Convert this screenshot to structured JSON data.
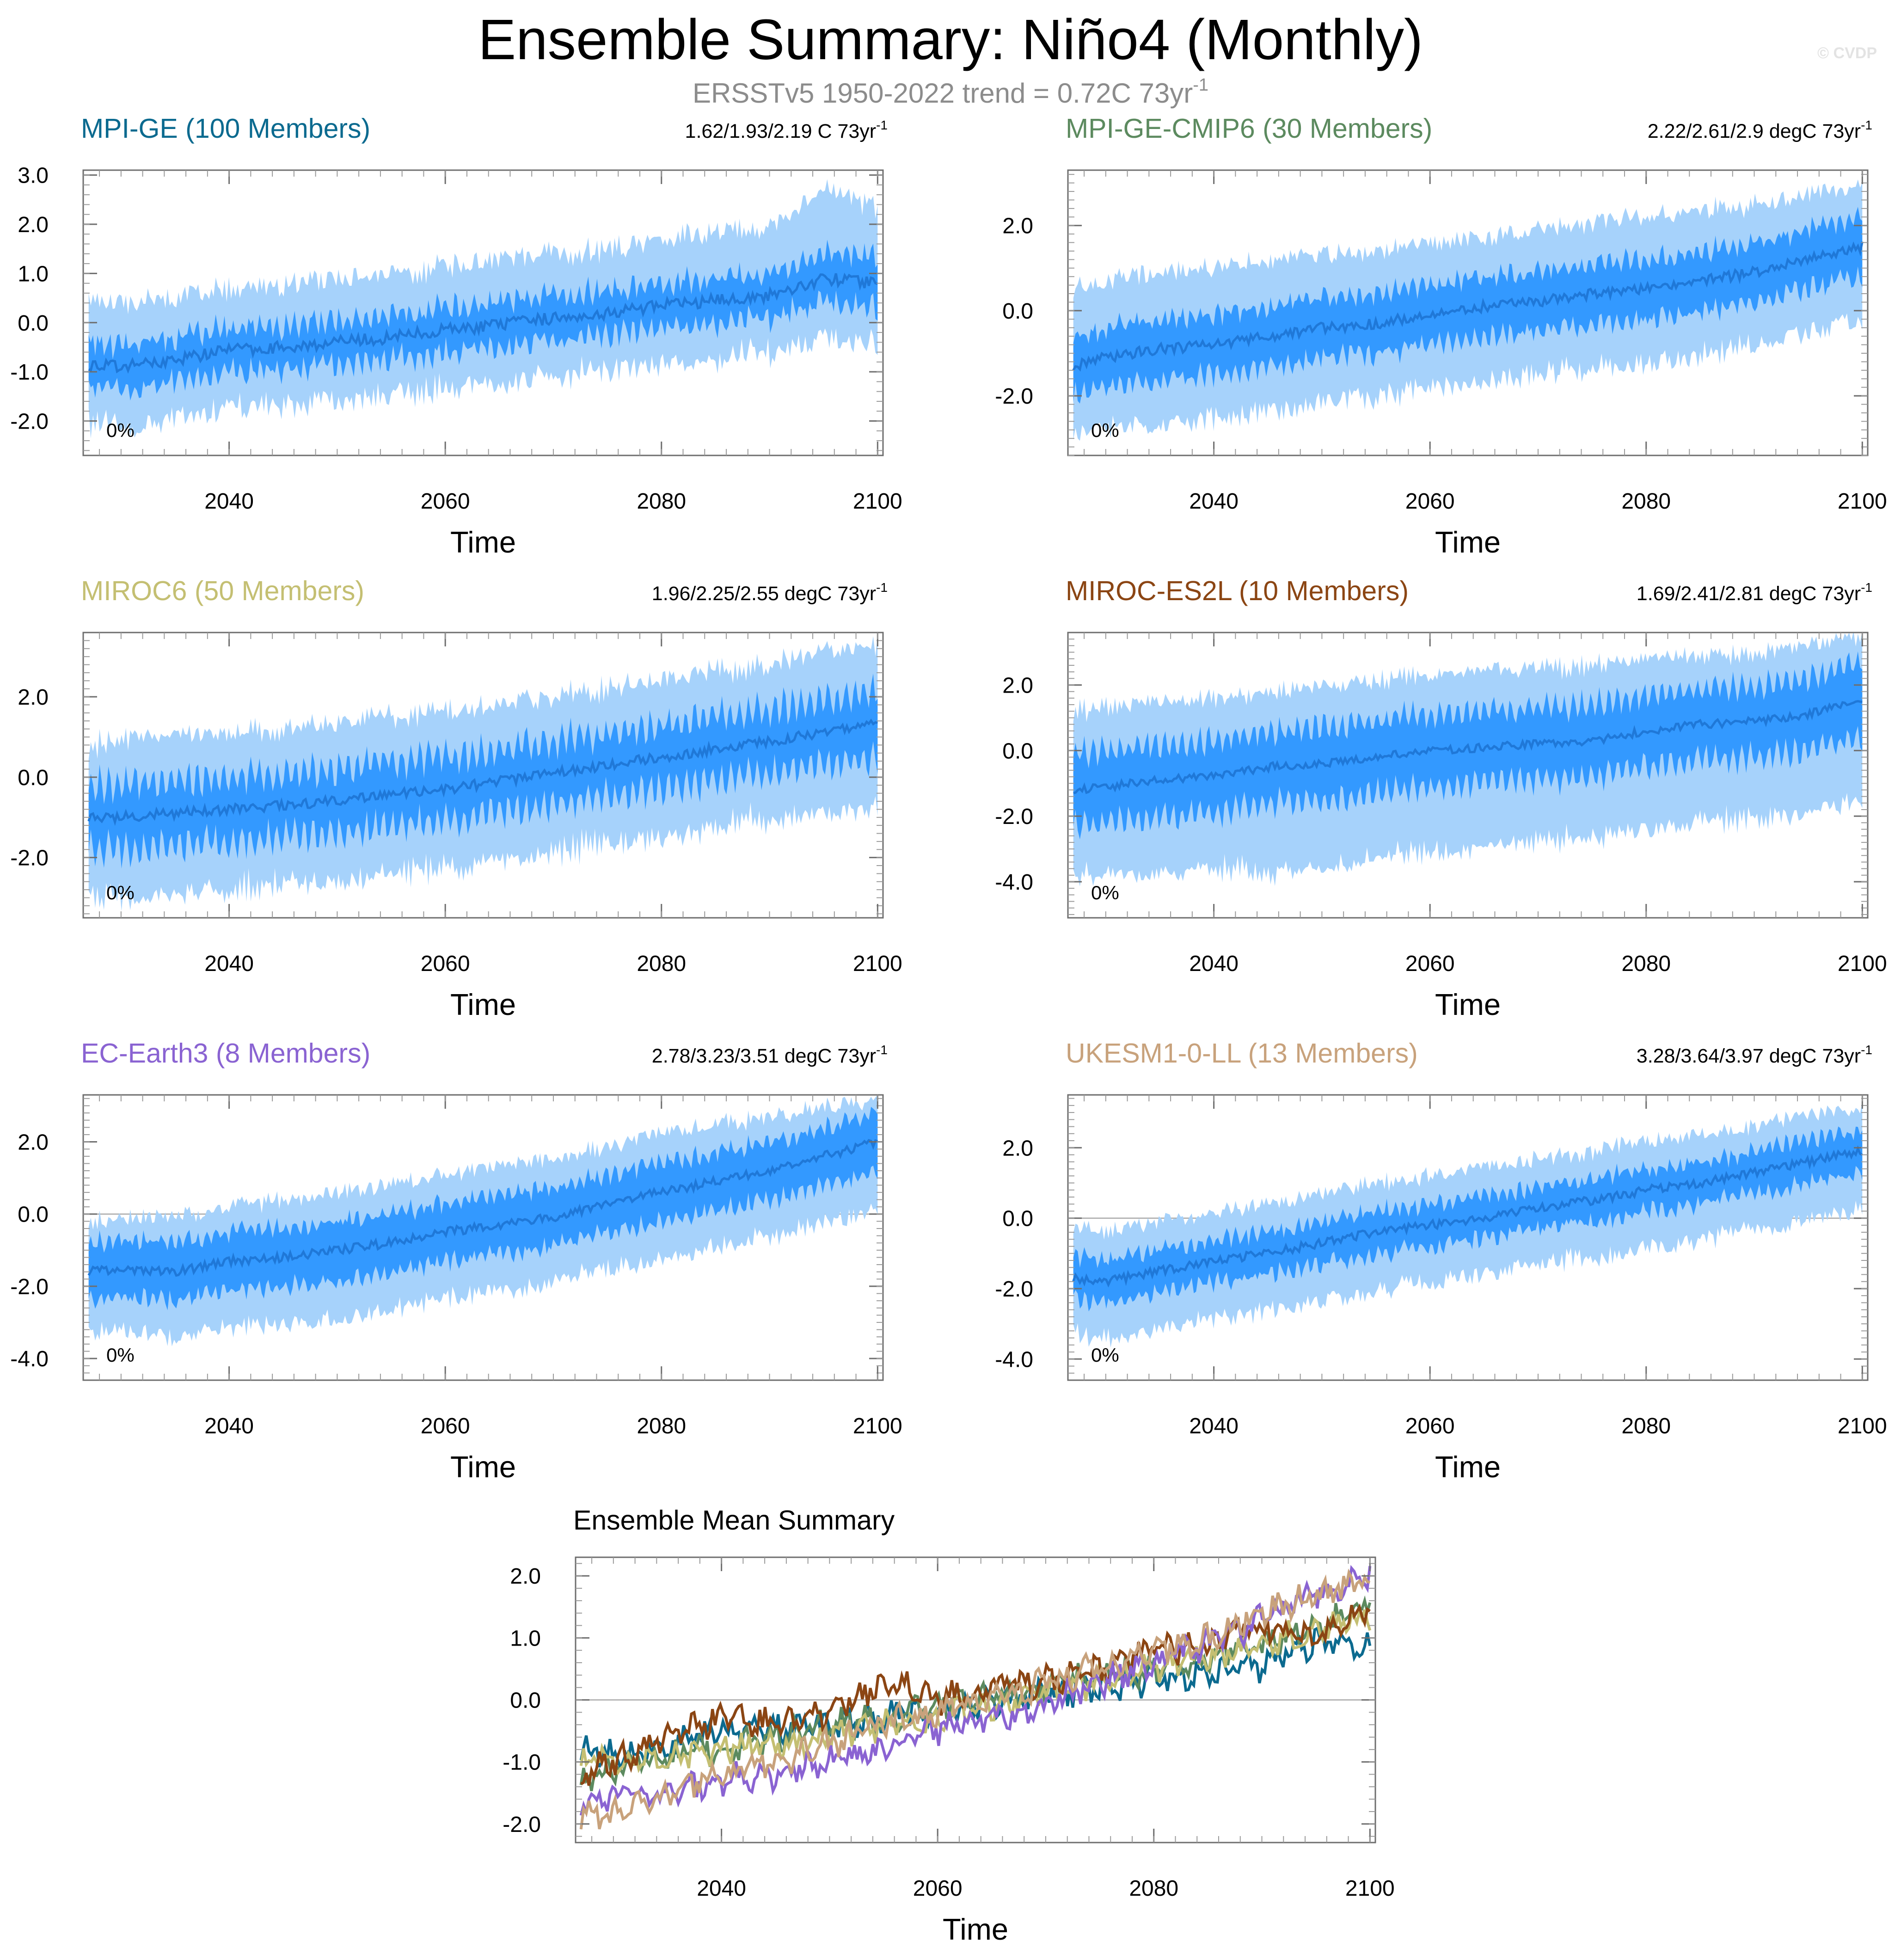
{
  "figure": {
    "title": "Ensemble Summary: Niño4 (Monthly)",
    "subtitle_text": "ERSSTv5 1950-2022 trend = 0.72C 73yr",
    "subtitle_sup": "-1",
    "watermark": "© CVDP"
  },
  "colors": {
    "band_outer": "#a6d2fb",
    "band_inner": "#3399ff",
    "mean_line": "#1f78d8",
    "zero_line": "#a9a9a9",
    "frame": "#6e6e6e"
  },
  "chart_data": [
    {
      "type": "area",
      "id": "mpi-ge",
      "title": "MPI-GE (100 Members)",
      "title_color": "#0b6a8f",
      "trend_text": "1.62/1.93/2.19 C 73yr",
      "trend_sup": "-1",
      "percent_label": "0%",
      "xlabel": "Time",
      "ylabel": "",
      "xlim": [
        2026.5,
        2100.5
      ],
      "ylim": [
        -2.7,
        3.1
      ],
      "xticks": [
        2040,
        2060,
        2080,
        2100
      ],
      "yticks": [
        3.0,
        2.0,
        1.0,
        0.0,
        -1.0,
        -2.0
      ],
      "ytick_labels": [
        "3.0",
        "2.0",
        "1.0",
        "0.0",
        "-1.0",
        "-2.0"
      ],
      "series": {
        "x": [
          2027,
          2030,
          2035,
          2040,
          2045,
          2050,
          2055,
          2060,
          2065,
          2070,
          2075,
          2080,
          2085,
          2090,
          2095,
          2100
        ],
        "mean": [
          -0.85,
          -0.9,
          -0.75,
          -0.55,
          -0.5,
          -0.4,
          -0.3,
          -0.15,
          -0.05,
          0.1,
          0.2,
          0.35,
          0.45,
          0.55,
          0.9,
          0.8
        ],
        "inner_low": [
          -1.3,
          -1.35,
          -1.2,
          -1.0,
          -0.95,
          -0.85,
          -0.75,
          -0.6,
          -0.5,
          -0.35,
          -0.25,
          -0.1,
          0.0,
          0.1,
          0.4,
          0.3
        ],
        "inner_high": [
          -0.4,
          -0.45,
          -0.3,
          -0.1,
          -0.05,
          0.05,
          0.15,
          0.3,
          0.4,
          0.55,
          0.65,
          0.8,
          0.9,
          1.0,
          1.4,
          1.3
        ],
        "outer_low": [
          -1.9,
          -2.0,
          -1.8,
          -1.6,
          -1.55,
          -1.45,
          -1.35,
          -1.2,
          -1.1,
          -0.95,
          -0.85,
          -0.7,
          -0.6,
          -0.5,
          -0.2,
          -0.3
        ],
        "outer_high": [
          0.4,
          0.3,
          0.4,
          0.6,
          0.7,
          0.8,
          0.9,
          1.05,
          1.15,
          1.3,
          1.4,
          1.6,
          1.75,
          1.85,
          2.6,
          2.2
        ]
      }
    },
    {
      "type": "area",
      "id": "mpi-ge-cmip6",
      "title": "MPI-GE-CMIP6 (30 Members)",
      "title_color": "#5c8a5f",
      "trend_text": "2.22/2.61/2.9 degC 73yr",
      "trend_sup": "-1",
      "percent_label": "0%",
      "xlabel": "Time",
      "ylabel": "",
      "xlim": [
        2026.5,
        2100.5
      ],
      "ylim": [
        -3.4,
        3.3
      ],
      "xticks": [
        2040,
        2060,
        2080,
        2100
      ],
      "yticks": [
        2.0,
        0.0,
        -2.0
      ],
      "ytick_labels": [
        "2.0",
        "0.0",
        "-2.0"
      ],
      "series": {
        "x": [
          2027,
          2030,
          2035,
          2040,
          2045,
          2050,
          2055,
          2060,
          2065,
          2070,
          2075,
          2080,
          2085,
          2090,
          2095,
          2100
        ],
        "mean": [
          -1.3,
          -1.1,
          -0.9,
          -0.8,
          -0.6,
          -0.4,
          -0.3,
          -0.1,
          0.1,
          0.2,
          0.4,
          0.5,
          0.7,
          0.9,
          1.2,
          1.5
        ],
        "inner_low": [
          -2.0,
          -1.8,
          -1.6,
          -1.5,
          -1.3,
          -1.1,
          -1.0,
          -0.8,
          -0.6,
          -0.5,
          -0.3,
          -0.2,
          0.0,
          0.2,
          0.5,
          0.8
        ],
        "inner_high": [
          -0.6,
          -0.4,
          -0.2,
          -0.1,
          0.1,
          0.3,
          0.4,
          0.6,
          0.8,
          0.9,
          1.1,
          1.2,
          1.4,
          1.6,
          1.9,
          2.2
        ],
        "outer_low": [
          -2.8,
          -2.6,
          -2.5,
          -2.4,
          -2.2,
          -2.0,
          -1.9,
          -1.7,
          -1.5,
          -1.4,
          -1.2,
          -1.1,
          -0.9,
          -0.7,
          -0.4,
          -0.1
        ],
        "outer_high": [
          0.5,
          0.6,
          0.8,
          0.9,
          1.1,
          1.2,
          1.3,
          1.5,
          1.6,
          1.8,
          2.0,
          2.1,
          2.3,
          2.4,
          2.6,
          2.8
        ]
      }
    },
    {
      "type": "area",
      "id": "miroc6",
      "title": "MIROC6 (50 Members)",
      "title_color": "#c4bf72",
      "trend_text": "1.96/2.25/2.55 degC 73yr",
      "trend_sup": "-1",
      "percent_label": "0%",
      "xlabel": "Time",
      "ylabel": "",
      "xlim": [
        2026.5,
        2100.5
      ],
      "ylim": [
        -3.5,
        3.6
      ],
      "xticks": [
        2040,
        2060,
        2080,
        2100
      ],
      "yticks": [
        2.0,
        0.0,
        -2.0
      ],
      "ytick_labels": [
        "2.0",
        "0.0",
        "-2.0"
      ],
      "series": {
        "x": [
          2027,
          2030,
          2035,
          2040,
          2045,
          2050,
          2055,
          2060,
          2065,
          2070,
          2075,
          2080,
          2085,
          2090,
          2095,
          2100
        ],
        "mean": [
          -1.0,
          -1.0,
          -0.9,
          -0.8,
          -0.7,
          -0.6,
          -0.4,
          -0.3,
          -0.1,
          0.1,
          0.3,
          0.5,
          0.7,
          0.9,
          1.1,
          1.35
        ],
        "inner_low": [
          -1.8,
          -1.8,
          -1.7,
          -1.6,
          -1.5,
          -1.4,
          -1.2,
          -1.1,
          -0.9,
          -0.7,
          -0.5,
          -0.3,
          -0.1,
          0.1,
          0.3,
          0.5
        ],
        "inner_high": [
          -0.2,
          -0.2,
          -0.1,
          0.0,
          0.1,
          0.2,
          0.4,
          0.5,
          0.7,
          0.9,
          1.1,
          1.3,
          1.5,
          1.7,
          1.9,
          2.2
        ],
        "outer_low": [
          -2.7,
          -2.7,
          -2.6,
          -2.5,
          -2.4,
          -2.3,
          -2.1,
          -2.0,
          -1.8,
          -1.6,
          -1.4,
          -1.2,
          -1.0,
          -0.8,
          -0.6,
          -0.4
        ],
        "outer_high": [
          0.6,
          0.7,
          0.8,
          0.9,
          1.0,
          1.1,
          1.3,
          1.4,
          1.6,
          1.8,
          2.0,
          2.2,
          2.4,
          2.6,
          2.9,
          3.1
        ]
      }
    },
    {
      "type": "area",
      "id": "miroc-es2l",
      "title": "MIROC-ES2L (10 Members)",
      "title_color": "#8b4513",
      "trend_text": "1.69/2.41/2.81 degC 73yr",
      "trend_sup": "-1",
      "percent_label": "0%",
      "xlabel": "Time",
      "ylabel": "",
      "xlim": [
        2026.5,
        2100.5
      ],
      "ylim": [
        -5.1,
        3.6
      ],
      "xticks": [
        2040,
        2060,
        2080,
        2100
      ],
      "yticks": [
        2.0,
        0.0,
        -2.0,
        -4.0
      ],
      "ytick_labels": [
        "2.0",
        "0.0",
        "-2.0",
        "-4.0"
      ],
      "series": {
        "x": [
          2027,
          2030,
          2035,
          2040,
          2045,
          2050,
          2055,
          2060,
          2065,
          2070,
          2075,
          2080,
          2085,
          2090,
          2095,
          2100
        ],
        "mean": [
          -1.2,
          -1.1,
          -0.9,
          -0.8,
          -0.5,
          -0.4,
          -0.2,
          0.0,
          0.1,
          0.2,
          0.3,
          0.6,
          0.8,
          0.9,
          1.1,
          1.6
        ],
        "inner_low": [
          -2.3,
          -2.2,
          -2.0,
          -1.9,
          -1.6,
          -1.5,
          -1.3,
          -1.1,
          -1.0,
          -0.9,
          -0.8,
          -0.5,
          -0.3,
          -0.2,
          0.0,
          0.4
        ],
        "inner_high": [
          -0.1,
          0.0,
          0.2,
          0.3,
          0.6,
          0.7,
          0.9,
          1.1,
          1.2,
          1.3,
          1.4,
          1.7,
          1.9,
          2.0,
          2.2,
          2.7
        ],
        "outer_low": [
          -3.6,
          -3.5,
          -3.4,
          -3.3,
          -3.5,
          -3.2,
          -3.0,
          -2.8,
          -2.7,
          -2.5,
          -2.4,
          -2.1,
          -1.9,
          -1.8,
          -1.6,
          -1.2
        ],
        "outer_high": [
          1.0,
          1.1,
          1.3,
          1.4,
          1.6,
          1.7,
          1.9,
          2.1,
          2.2,
          2.3,
          2.4,
          2.6,
          2.7,
          2.8,
          3.0,
          3.2
        ]
      }
    },
    {
      "type": "area",
      "id": "ec-earth3",
      "title": "EC-Earth3 (8 Members)",
      "title_color": "#8a63d2",
      "trend_text": "2.78/3.23/3.51 degC 73yr",
      "trend_sup": "-1",
      "percent_label": "0%",
      "xlabel": "Time",
      "ylabel": "",
      "xlim": [
        2026.5,
        2100.5
      ],
      "ylim": [
        -4.6,
        3.3
      ],
      "xticks": [
        2040,
        2060,
        2080,
        2100
      ],
      "yticks": [
        2.0,
        0.0,
        -2.0,
        -4.0
      ],
      "ytick_labels": [
        "2.0",
        "0.0",
        "-2.0",
        "-4.0"
      ],
      "series": {
        "x": [
          2027,
          2030,
          2035,
          2040,
          2045,
          2050,
          2055,
          2060,
          2065,
          2070,
          2075,
          2080,
          2085,
          2090,
          2095,
          2100
        ],
        "mean": [
          -1.6,
          -1.5,
          -1.6,
          -1.3,
          -1.2,
          -1.0,
          -0.8,
          -0.5,
          -0.3,
          -0.1,
          0.3,
          0.6,
          0.9,
          1.2,
          1.6,
          2.0
        ],
        "inner_low": [
          -2.4,
          -2.3,
          -2.4,
          -2.1,
          -2.0,
          -1.8,
          -1.6,
          -1.3,
          -1.1,
          -0.9,
          -0.5,
          -0.2,
          0.1,
          0.4,
          0.8,
          1.2
        ],
        "inner_high": [
          -0.8,
          -0.7,
          -0.8,
          -0.5,
          -0.4,
          -0.2,
          0.0,
          0.3,
          0.5,
          0.7,
          1.1,
          1.4,
          1.7,
          2.0,
          2.4,
          2.8
        ],
        "outer_low": [
          -3.2,
          -3.1,
          -3.3,
          -3.0,
          -2.9,
          -2.7,
          -2.5,
          -2.2,
          -2.0,
          -1.8,
          -1.4,
          -1.1,
          -0.8,
          -0.5,
          -0.1,
          0.3
        ],
        "outer_high": [
          -0.3,
          -0.2,
          -0.2,
          0.1,
          0.3,
          0.5,
          0.7,
          1.0,
          1.2,
          1.4,
          1.8,
          2.1,
          2.4,
          2.6,
          2.9,
          3.0
        ]
      }
    },
    {
      "type": "area",
      "id": "ukesm1-0-ll",
      "title": "UKESM1-0-LL (13 Members)",
      "title_color": "#c8a27c",
      "trend_text": "3.28/3.64/3.97 degC 73yr",
      "trend_sup": "-1",
      "percent_label": "0%",
      "xlabel": "Time",
      "ylabel": "",
      "xlim": [
        2026.5,
        2100.5
      ],
      "ylim": [
        -4.6,
        3.5
      ],
      "xticks": [
        2040,
        2060,
        2080,
        2100
      ],
      "yticks": [
        2.0,
        0.0,
        -2.0,
        -4.0
      ],
      "ytick_labels": [
        "2.0",
        "0.0",
        "-2.0",
        "-4.0"
      ],
      "series": {
        "x": [
          2027,
          2030,
          2035,
          2040,
          2045,
          2050,
          2055,
          2060,
          2065,
          2070,
          2075,
          2080,
          2085,
          2090,
          2095,
          2100
        ],
        "mean": [
          -1.7,
          -1.8,
          -1.5,
          -1.2,
          -1.0,
          -0.7,
          -0.4,
          -0.2,
          0.0,
          0.3,
          0.5,
          0.8,
          1.0,
          1.3,
          1.6,
          1.9
        ],
        "inner_low": [
          -2.3,
          -2.4,
          -2.1,
          -1.8,
          -1.6,
          -1.3,
          -1.0,
          -0.8,
          -0.6,
          -0.3,
          -0.1,
          0.2,
          0.4,
          0.7,
          1.0,
          1.3
        ],
        "inner_high": [
          -1.1,
          -1.2,
          -0.9,
          -0.6,
          -0.4,
          -0.1,
          0.2,
          0.4,
          0.6,
          0.9,
          1.1,
          1.4,
          1.6,
          1.9,
          2.2,
          2.5
        ],
        "outer_low": [
          -3.2,
          -3.3,
          -3.0,
          -2.7,
          -2.5,
          -2.2,
          -1.9,
          -1.7,
          -1.5,
          -1.2,
          -1.0,
          -0.7,
          -0.5,
          -0.2,
          0.1,
          0.4
        ],
        "outer_high": [
          -0.4,
          -0.5,
          -0.2,
          0.1,
          0.3,
          0.6,
          0.9,
          1.1,
          1.3,
          1.6,
          1.8,
          2.1,
          2.3,
          2.5,
          2.8,
          3.0
        ]
      }
    },
    {
      "type": "line",
      "id": "ensemble-mean",
      "title": "Ensemble Mean Summary",
      "xlabel": "Time",
      "ylabel": "",
      "xlim": [
        2026.5,
        2100.5
      ],
      "ylim": [
        -2.3,
        2.3
      ],
      "xticks": [
        2040,
        2060,
        2080,
        2100
      ],
      "yticks": [
        2.0,
        1.0,
        0.0,
        -1.0,
        -2.0
      ],
      "ytick_labels": [
        "2.0",
        "1.0",
        "0.0",
        "-1.0",
        "-2.0"
      ],
      "x": [
        2027,
        2030,
        2035,
        2040,
        2045,
        2050,
        2055,
        2060,
        2065,
        2070,
        2075,
        2080,
        2085,
        2090,
        2095,
        2100
      ],
      "series": [
        {
          "name": "MPI-GE (100 Members)",
          "color": "#0b6a8f",
          "values": [
            -0.8,
            -0.9,
            -0.75,
            -0.5,
            -0.5,
            -0.4,
            -0.3,
            -0.15,
            -0.05,
            0.1,
            0.2,
            0.35,
            0.45,
            0.55,
            0.95,
            0.8
          ]
        },
        {
          "name": "MPI-GE-CMIP6 (30 Members)",
          "color": "#5c8a5f",
          "values": [
            -1.3,
            -1.1,
            -0.9,
            -0.8,
            -0.6,
            -0.4,
            -0.3,
            -0.1,
            0.1,
            0.2,
            0.4,
            0.5,
            0.7,
            0.9,
            1.2,
            1.5
          ]
        },
        {
          "name": "MIROC6 (50 Members)",
          "color": "#c4bf72",
          "values": [
            -1.0,
            -1.0,
            -0.9,
            -0.8,
            -0.7,
            -0.6,
            -0.4,
            -0.3,
            -0.1,
            0.1,
            0.3,
            0.5,
            0.7,
            0.9,
            1.1,
            1.35
          ]
        },
        {
          "name": "MIROC-ES2L (10 Members)",
          "color": "#8b4513",
          "values": [
            -1.2,
            -1.0,
            -0.6,
            -0.3,
            -0.4,
            -0.2,
            0.3,
            0.0,
            0.2,
            0.3,
            0.5,
            0.8,
            0.9,
            1.2,
            1.0,
            1.5
          ]
        },
        {
          "name": "EC-Earth3 (8 Members)",
          "color": "#8a63d2",
          "values": [
            -1.6,
            -1.5,
            -1.5,
            -1.3,
            -1.2,
            -1.0,
            -0.8,
            -0.5,
            -0.3,
            -0.1,
            0.3,
            0.6,
            0.9,
            1.3,
            1.7,
            2.0
          ]
        },
        {
          "name": "UKESM1-0-LL (13 Members)",
          "color": "#c8a27c",
          "values": [
            -1.8,
            -1.9,
            -1.5,
            -1.2,
            -1.0,
            -0.7,
            -0.4,
            -0.2,
            0.0,
            0.3,
            0.5,
            0.8,
            1.0,
            1.4,
            1.7,
            1.9
          ]
        }
      ]
    }
  ]
}
